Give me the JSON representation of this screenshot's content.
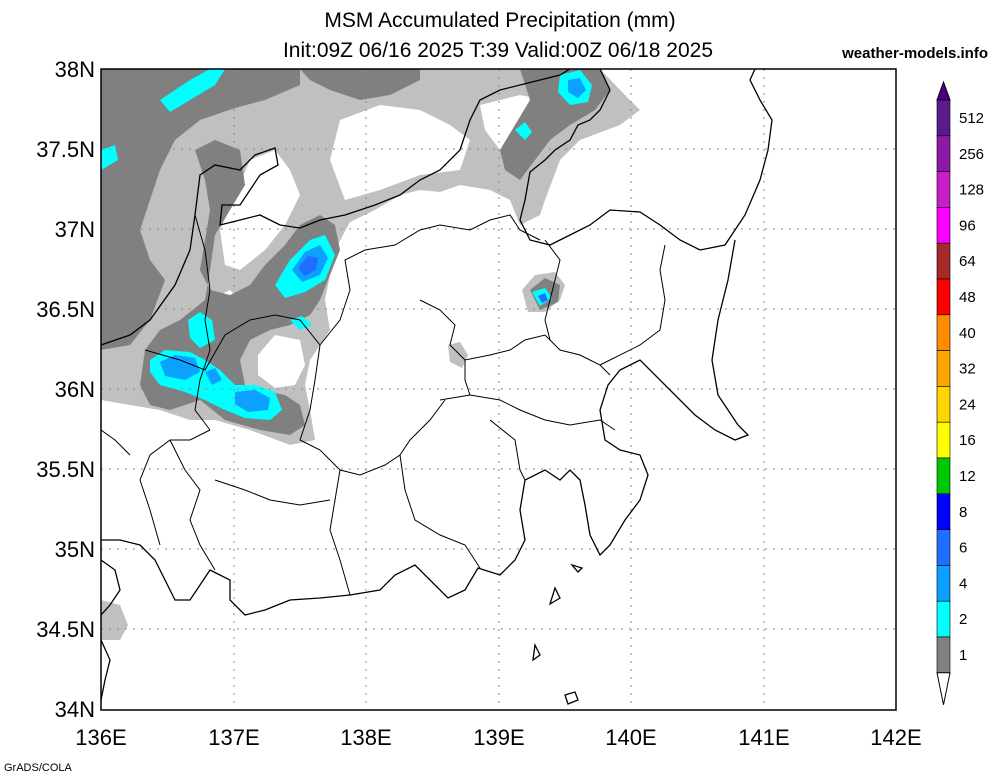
{
  "title_line1": "MSM Accumulated Precipitation (mm)",
  "title_line2": "Init:09Z 06/16 2025  T:39 Valid:00Z 06/18 2025",
  "site_label": "weather-models.info",
  "credit": "GrADS/COLA",
  "lat_labels": [
    "38N",
    "37.5N",
    "37N",
    "36.5N",
    "36N",
    "35.5N",
    "35N",
    "34.5N",
    "34N"
  ],
  "lon_labels": [
    "136E",
    "137E",
    "138E",
    "139E",
    "140E",
    "141E",
    "142E"
  ],
  "colorbar": {
    "labels": [
      "512",
      "256",
      "128",
      "96",
      "64",
      "48",
      "40",
      "32",
      "24",
      "16",
      "12",
      "8",
      "6",
      "4",
      "2",
      "1"
    ],
    "colors": [
      "#5a1a8c",
      "#8c1aa6",
      "#c81ec8",
      "#ff00ff",
      "#a52a2a",
      "#ff0000",
      "#ff8c00",
      "#ffa500",
      "#ffd700",
      "#ffff00",
      "#00c800",
      "#0000ff",
      "#1e6eff",
      "#0ca0ff",
      "#00ffff",
      "#808080",
      "#c0c0c0"
    ],
    "top_color": "#4b0082"
  },
  "colors": {
    "light_gray": "#c0c0c0",
    "dark_gray": "#808080",
    "cyan": "#00ffff",
    "sky_blue": "#0ca0ff",
    "blue": "#1e6eff"
  }
}
